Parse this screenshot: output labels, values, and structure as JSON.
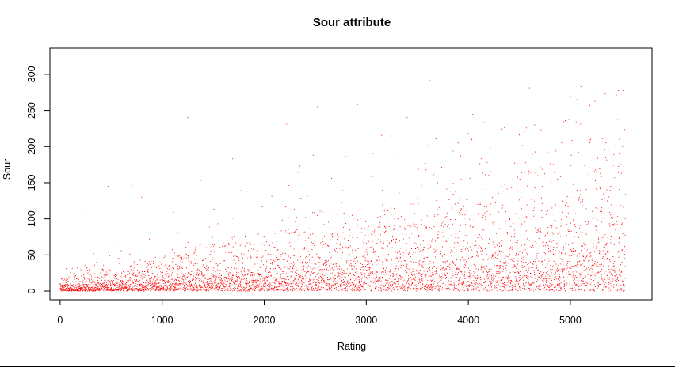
{
  "chart_data": {
    "type": "scatter",
    "title": "Sour attribute",
    "xlabel": "Rating",
    "ylabel": "Sour",
    "x_ticks": [
      0,
      1000,
      2000,
      3000,
      4000,
      5000
    ],
    "y_ticks": [
      0,
      50,
      100,
      150,
      200,
      250,
      300
    ],
    "xlim": [
      -100,
      5800
    ],
    "ylim": [
      -12,
      336
    ],
    "point_color": "#ff0000",
    "n_points": 5550,
    "grid": false,
    "legend": "none",
    "series": [
      {
        "points": [
          [
            5330,
            322
          ],
          [
            5300,
            284
          ],
          [
            5000,
            269
          ],
          [
            1250,
            240
          ],
          [
            3400,
            240
          ],
          [
            2220,
            231
          ],
          [
            4150,
            233
          ],
          [
            4650,
            230
          ],
          [
            5100,
            231
          ],
          [
            4330,
            224
          ],
          [
            4550,
            221
          ],
          [
            3350,
            220
          ],
          [
            4000,
            218
          ],
          [
            4950,
            236
          ],
          [
            4500,
            216
          ],
          [
            5200,
            210
          ],
          [
            3900,
            205
          ],
          [
            2480,
            188
          ],
          [
            2350,
            173
          ],
          [
            2800,
            186
          ],
          [
            1690,
            183
          ],
          [
            1270,
            180
          ],
          [
            470,
            145
          ],
          [
            700,
            146
          ],
          [
            800,
            130
          ],
          [
            1450,
            145
          ],
          [
            200,
            112
          ],
          [
            100,
            97
          ],
          [
            850,
            109
          ],
          [
            5480,
            210
          ],
          [
            5350,
            205
          ],
          [
            5520,
            165
          ],
          [
            4200,
            160
          ],
          [
            3700,
            150
          ]
        ]
      }
    ]
  }
}
